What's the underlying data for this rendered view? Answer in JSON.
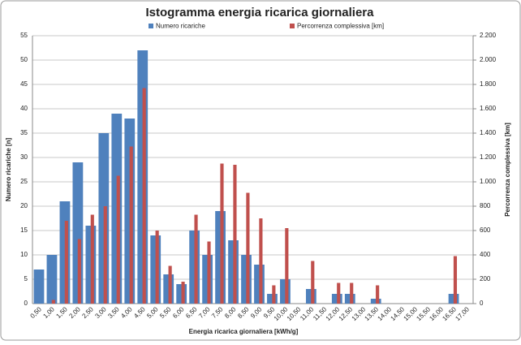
{
  "chart_data": {
    "type": "bar",
    "title": "Istogramma energia ricarica giornaliera",
    "xlabel": "Energia ricarica giornaliera [kWh/g]",
    "ylabel": "Numero ricariche [n]",
    "y2label": "Percorrenza complessiva [km]",
    "categories": [
      "0,50",
      "1,00",
      "1,50",
      "2,00",
      "2,50",
      "3,00",
      "3,50",
      "4,00",
      "4,50",
      "5,00",
      "5,50",
      "6,00",
      "6,50",
      "7,00",
      "7,50",
      "8,00",
      "8,50",
      "9,00",
      "9,50",
      "10,00",
      "10,50",
      "11,00",
      "11,50",
      "12,00",
      "12,50",
      "13,00",
      "13,50",
      "14,00",
      "14,50",
      "15,00",
      "15,50",
      "16,00",
      "16,50",
      "17,00"
    ],
    "series": [
      {
        "name": "Numero ricariche",
        "color": "#4f81bd",
        "axis": "y",
        "values": [
          7,
          10,
          21,
          29,
          16,
          35,
          39,
          38,
          52,
          14,
          6,
          4,
          15,
          10,
          19,
          13,
          10,
          8,
          2,
          5,
          0,
          3,
          0,
          2,
          2,
          0,
          1,
          0,
          0,
          0,
          0,
          0,
          2,
          0
        ]
      },
      {
        "name": "Percorrenza complessiva [km]",
        "color": "#c0504d",
        "axis": "y2",
        "values": [
          0,
          30,
          680,
          530,
          730,
          800,
          1050,
          1290,
          1770,
          600,
          310,
          180,
          730,
          510,
          1150,
          1140,
          910,
          700,
          150,
          620,
          0,
          350,
          0,
          170,
          170,
          0,
          150,
          0,
          0,
          0,
          0,
          0,
          390,
          0
        ]
      }
    ],
    "ylim": [
      0,
      55
    ],
    "yticks": [
      0,
      5,
      10,
      15,
      20,
      25,
      30,
      35,
      40,
      45,
      50,
      55
    ],
    "y2lim": [
      0,
      2200
    ],
    "y2ticks": [
      0,
      200,
      400,
      600,
      800,
      {
        "value": 1000,
        "label": "1.000"
      },
      {
        "value": 1200,
        "label": "1.200"
      },
      {
        "value": 1400,
        "label": "1.400"
      },
      {
        "value": 1600,
        "label": "1.600"
      },
      {
        "value": 1800,
        "label": "1.800"
      },
      {
        "value": 2000,
        "label": "2.000"
      },
      {
        "value": 2200,
        "label": "2.200"
      }
    ],
    "grid": true,
    "legend": "top"
  }
}
